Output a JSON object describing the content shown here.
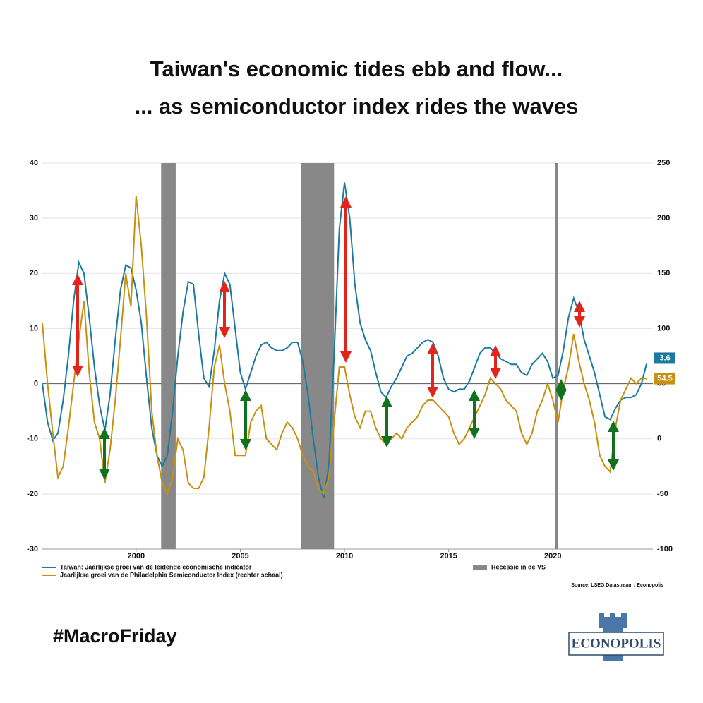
{
  "chart_data": {
    "type": "line",
    "title": "Taiwan's economic tides ebb and flow...",
    "subtitle": "... as semiconductor index rides the waves",
    "source": "Source: LSEG Datastream / Econopolis",
    "hashtag": "#MacroFriday",
    "logo": "ECONOPOLIS",
    "xlim": [
      1995.5,
      2024.8
    ],
    "xticks": [
      2000,
      2005,
      2010,
      2015,
      2020
    ],
    "ylim": [
      -30,
      40
    ],
    "yticks": [
      -30,
      -20,
      -10,
      0,
      10,
      20,
      30,
      40
    ],
    "y2lim": [
      -100,
      250
    ],
    "y2ticks": [
      -100,
      -50,
      0,
      50,
      100,
      150,
      200,
      250
    ],
    "grid": true,
    "recession_name": "Recessie in de VS",
    "recession_color": "#888888",
    "recessions": [
      [
        2001.2,
        2001.9
      ],
      [
        2007.9,
        2009.5
      ],
      [
        2020.1,
        2020.25
      ]
    ],
    "x": [
      1995.5,
      1995.75,
      1996,
      1996.25,
      1996.5,
      1996.75,
      1997,
      1997.25,
      1997.5,
      1997.75,
      1998,
      1998.25,
      1998.5,
      1998.75,
      1999,
      1999.25,
      1999.5,
      1999.75,
      2000,
      2000.25,
      2000.5,
      2000.75,
      2001,
      2001.25,
      2001.5,
      2001.75,
      2002,
      2002.25,
      2002.5,
      2002.75,
      2003,
      2003.25,
      2003.5,
      2003.75,
      2004,
      2004.25,
      2004.5,
      2004.75,
      2005,
      2005.25,
      2005.5,
      2005.75,
      2006,
      2006.25,
      2006.5,
      2006.75,
      2007,
      2007.25,
      2007.5,
      2007.75,
      2008,
      2008.25,
      2008.5,
      2008.75,
      2009,
      2009.25,
      2009.5,
      2009.75,
      2010,
      2010.25,
      2010.5,
      2010.75,
      2011,
      2011.25,
      2011.5,
      2011.75,
      2012,
      2012.25,
      2012.5,
      2012.75,
      2013,
      2013.25,
      2013.5,
      2013.75,
      2014,
      2014.25,
      2014.5,
      2014.75,
      2015,
      2015.25,
      2015.5,
      2015.75,
      2016,
      2016.25,
      2016.5,
      2016.75,
      2017,
      2017.25,
      2017.5,
      2017.75,
      2018,
      2018.25,
      2018.5,
      2018.75,
      2019,
      2019.25,
      2019.5,
      2019.75,
      2020,
      2020.25,
      2020.5,
      2020.75,
      2021,
      2021.25,
      2021.5,
      2021.75,
      2022,
      2022.25,
      2022.5,
      2022.75,
      2023,
      2023.25,
      2023.5,
      2023.75,
      2024,
      2024.25,
      2024.5
    ],
    "series": [
      {
        "name": "Taiwan: Jaarlijkse groei van de leidende economische indicator",
        "color": "#1a7aa0",
        "values": [
          0,
          -7,
          -10.3,
          -9,
          -3,
          5,
          15,
          22,
          20,
          12,
          3,
          -4,
          -8.5,
          -2,
          8,
          17,
          21.5,
          21,
          17,
          11,
          1,
          -8,
          -13,
          -15,
          -13,
          -5,
          5,
          13,
          18.5,
          18,
          9,
          1,
          -0.5,
          6,
          15,
          20,
          18,
          10,
          2,
          -1,
          2,
          5,
          7,
          7.5,
          6.5,
          6,
          6,
          6.5,
          7.5,
          7.5,
          4,
          -2,
          -10,
          -17,
          -20.8,
          -15,
          5,
          28,
          36.5,
          30,
          18,
          11,
          8,
          6,
          2,
          -1.5,
          -2.5,
          -0.5,
          1,
          3,
          5,
          5.5,
          6.5,
          7.5,
          8,
          7.5,
          5,
          1,
          -1,
          -1.5,
          -1,
          -1,
          0.5,
          3,
          5.5,
          6.5,
          6.5,
          5.5,
          4.5,
          4,
          3.5,
          3.5,
          2,
          1.5,
          3.5,
          4.5,
          5.5,
          4,
          1,
          1.5,
          6,
          12,
          15.5,
          13,
          8,
          5,
          2,
          -2,
          -6,
          -6.5,
          -4.5,
          -3,
          -2.5,
          -2.5,
          -2,
          0,
          3.6
        ]
      },
      {
        "name": "Jaarlijkse groei van de Philadelphia Semiconductor Index (rechter schaal)",
        "color": "#c8900f",
        "axis": "y2",
        "values": [
          105,
          50,
          5,
          -35,
          -25,
          10,
          50,
          90,
          125,
          60,
          15,
          0,
          -40,
          -10,
          35,
          90,
          150,
          120,
          220,
          175,
          110,
          25,
          -15,
          -40,
          -50,
          -35,
          0,
          -10,
          -40,
          -45,
          -45,
          -35,
          10,
          65,
          85,
          50,
          25,
          -15,
          -15,
          -15,
          15,
          25,
          30,
          0,
          -5,
          -10,
          5,
          15,
          10,
          0,
          -15,
          -25,
          -30,
          -45,
          -50,
          -35,
          15,
          65,
          65,
          40,
          20,
          10,
          25,
          25,
          10,
          0,
          -5,
          0,
          5,
          0,
          10,
          15,
          20,
          30,
          35,
          35,
          30,
          25,
          20,
          5,
          -5,
          0,
          10,
          20,
          30,
          40,
          55,
          50,
          45,
          35,
          30,
          25,
          5,
          -5,
          5,
          25,
          35,
          50,
          35,
          15,
          45,
          65,
          95,
          70,
          50,
          35,
          15,
          -15,
          -25,
          -30,
          10,
          35,
          45,
          55,
          50,
          55,
          54.5
        ]
      }
    ]
  }
}
